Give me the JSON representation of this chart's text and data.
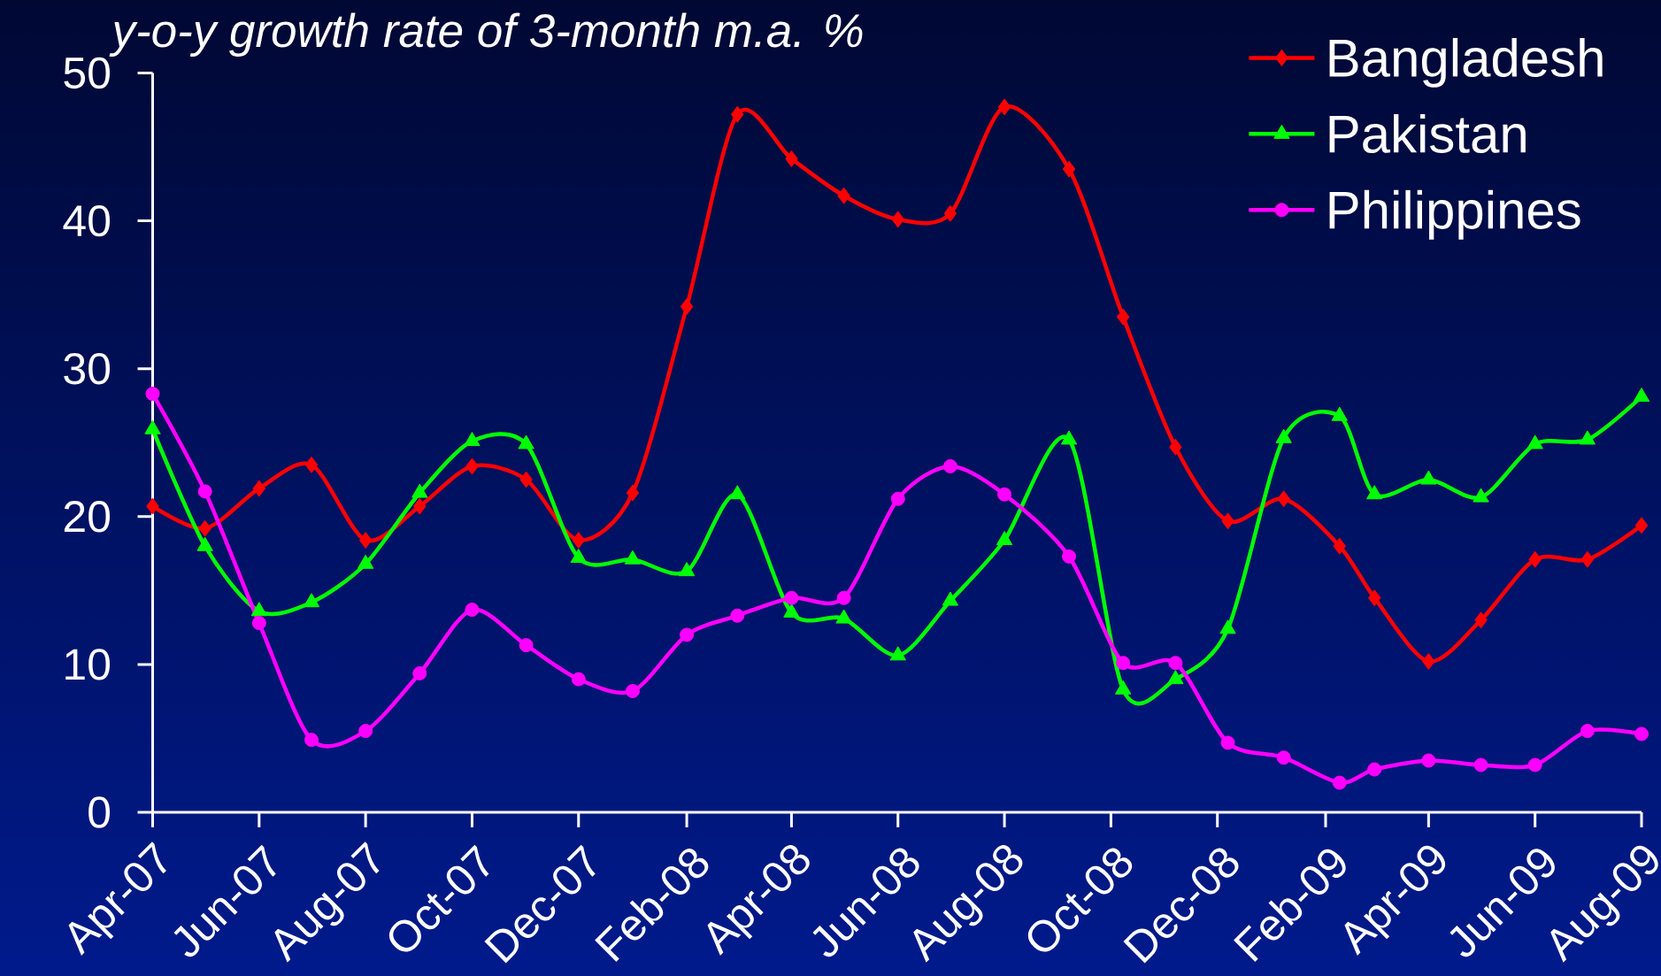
{
  "chart_data": {
    "type": "line",
    "ylabel": "y-o-y growth rate of 3-month m.a. %",
    "x": [
      "2007-04-01",
      "2007-05-01",
      "2007-06-01",
      "2007-07-01",
      "2007-08-01",
      "2007-09-01",
      "2007-10-01",
      "2007-11-01",
      "2007-12-01",
      "2008-01-01",
      "2008-02-01",
      "2008-03-01",
      "2008-04-01",
      "2008-05-01",
      "2008-06-01",
      "2008-07-01",
      "2008-08-01",
      "2008-09-07",
      "2008-10-08",
      "2008-11-07",
      "2008-12-07",
      "2009-01-08",
      "2009-02-09",
      "2009-03-01",
      "2009-04-01",
      "2009-05-01",
      "2009-06-01",
      "2009-07-01",
      "2009-08-01"
    ],
    "xlim": [
      "2007-04-01",
      "2009-08-01"
    ],
    "xticks": [
      {
        "value": "2007-04",
        "label": "Apr-07"
      },
      {
        "value": "2007-06",
        "label": "Jun-07"
      },
      {
        "value": "2007-08",
        "label": "Aug-07"
      },
      {
        "value": "2007-10",
        "label": "Oct-07"
      },
      {
        "value": "2007-12",
        "label": "Dec-07"
      },
      {
        "value": "2008-02",
        "label": "Feb-08"
      },
      {
        "value": "2008-04",
        "label": "Apr-08"
      },
      {
        "value": "2008-06",
        "label": "Jun-08"
      },
      {
        "value": "2008-08",
        "label": "Aug-08"
      },
      {
        "value": "2008-10",
        "label": "Oct-08"
      },
      {
        "value": "2008-12",
        "label": "Dec-08"
      },
      {
        "value": "2009-02",
        "label": "Feb-09"
      },
      {
        "value": "2009-04",
        "label": "Apr-09"
      },
      {
        "value": "2009-06",
        "label": "Jun-09"
      },
      {
        "value": "2009-08",
        "label": "Aug-09"
      }
    ],
    "ylim": [
      0,
      50
    ],
    "yticks": [
      0,
      10,
      20,
      30,
      40,
      50
    ],
    "legend": "top right",
    "series": [
      {
        "name": "Bangladesh",
        "color": "#ff0000",
        "marker": "diamond",
        "values": [
          20.7,
          19.2,
          21.9,
          23.5,
          18.4,
          20.7,
          23.4,
          22.5,
          18.4,
          21.6,
          34.2,
          47.2,
          44.2,
          41.7,
          40.1,
          40.5,
          47.7,
          43.5,
          33.5,
          24.7,
          19.7,
          21.2,
          18.0,
          14.5,
          10.2,
          13.0,
          17.1,
          17.1,
          19.4
        ]
      },
      {
        "name": "Pakistan",
        "color": "#00ff00",
        "marker": "triangle",
        "values": [
          25.9,
          18.0,
          13.6,
          14.2,
          16.8,
          21.6,
          25.1,
          24.9,
          17.2,
          17.1,
          16.3,
          21.5,
          13.5,
          13.1,
          10.6,
          14.3,
          18.4,
          25.2,
          8.3,
          9.0,
          12.4,
          25.3,
          26.8,
          21.5,
          22.5,
          21.3,
          24.9,
          25.2,
          28.1
        ]
      },
      {
        "name": "Philippines",
        "color": "#ff00ff",
        "marker": "circle",
        "values": [
          28.3,
          21.7,
          12.8,
          4.9,
          5.5,
          9.4,
          13.7,
          11.3,
          9.0,
          8.2,
          12.0,
          13.3,
          14.5,
          14.5,
          21.2,
          23.4,
          21.5,
          17.3,
          10.1,
          10.1,
          4.7,
          3.7,
          2.0,
          2.9,
          3.5,
          3.2,
          3.2,
          5.5,
          5.3
        ]
      }
    ]
  }
}
